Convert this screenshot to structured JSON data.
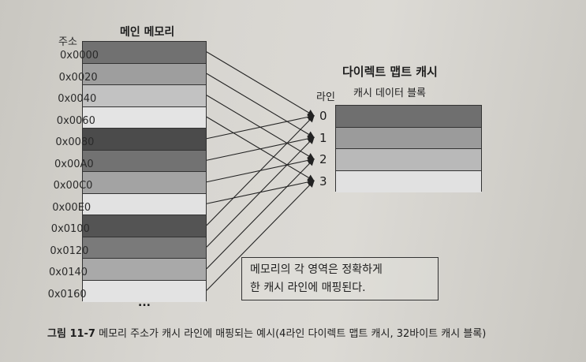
{
  "memory": {
    "title": "메인 메모리",
    "address_header": "주소",
    "addresses": [
      "0x0000",
      "0x0020",
      "0x0040",
      "0x0060",
      "0x0080",
      "0x00A0",
      "0x00C0",
      "0x00E0",
      "0x0100",
      "0x0120",
      "0x0140",
      "0x0160"
    ],
    "row_colors": [
      "#717171",
      "#9e9e9e",
      "#c2c2c2",
      "#e4e4e4",
      "#4b4b4b",
      "#727272",
      "#a3a3a3",
      "#e2e2e2",
      "#545454",
      "#7a7a7a",
      "#a9a9a9",
      "#e3e3e3"
    ],
    "ellipsis": "..."
  },
  "cache": {
    "title": "다이렉트 맵트 캐시",
    "line_header": "라인",
    "data_header": "캐시 데이터 블록",
    "lines": [
      "0",
      "1",
      "2",
      "3"
    ],
    "row_colors": [
      "#6f6f6f",
      "#9b9b9b",
      "#b9b9b9",
      "#e1e1e1"
    ]
  },
  "note": {
    "line1": "메모리의 각 영역은 정확하게",
    "line2": "한 캐시 라인에 매핑된다."
  },
  "caption": {
    "label": "그림 11-7",
    "text": "메모리 주소가 캐시 라인에 매핑되는 예시(4라인 다이렉트 맵트 캐시, 32바이트 캐시 블록)"
  }
}
